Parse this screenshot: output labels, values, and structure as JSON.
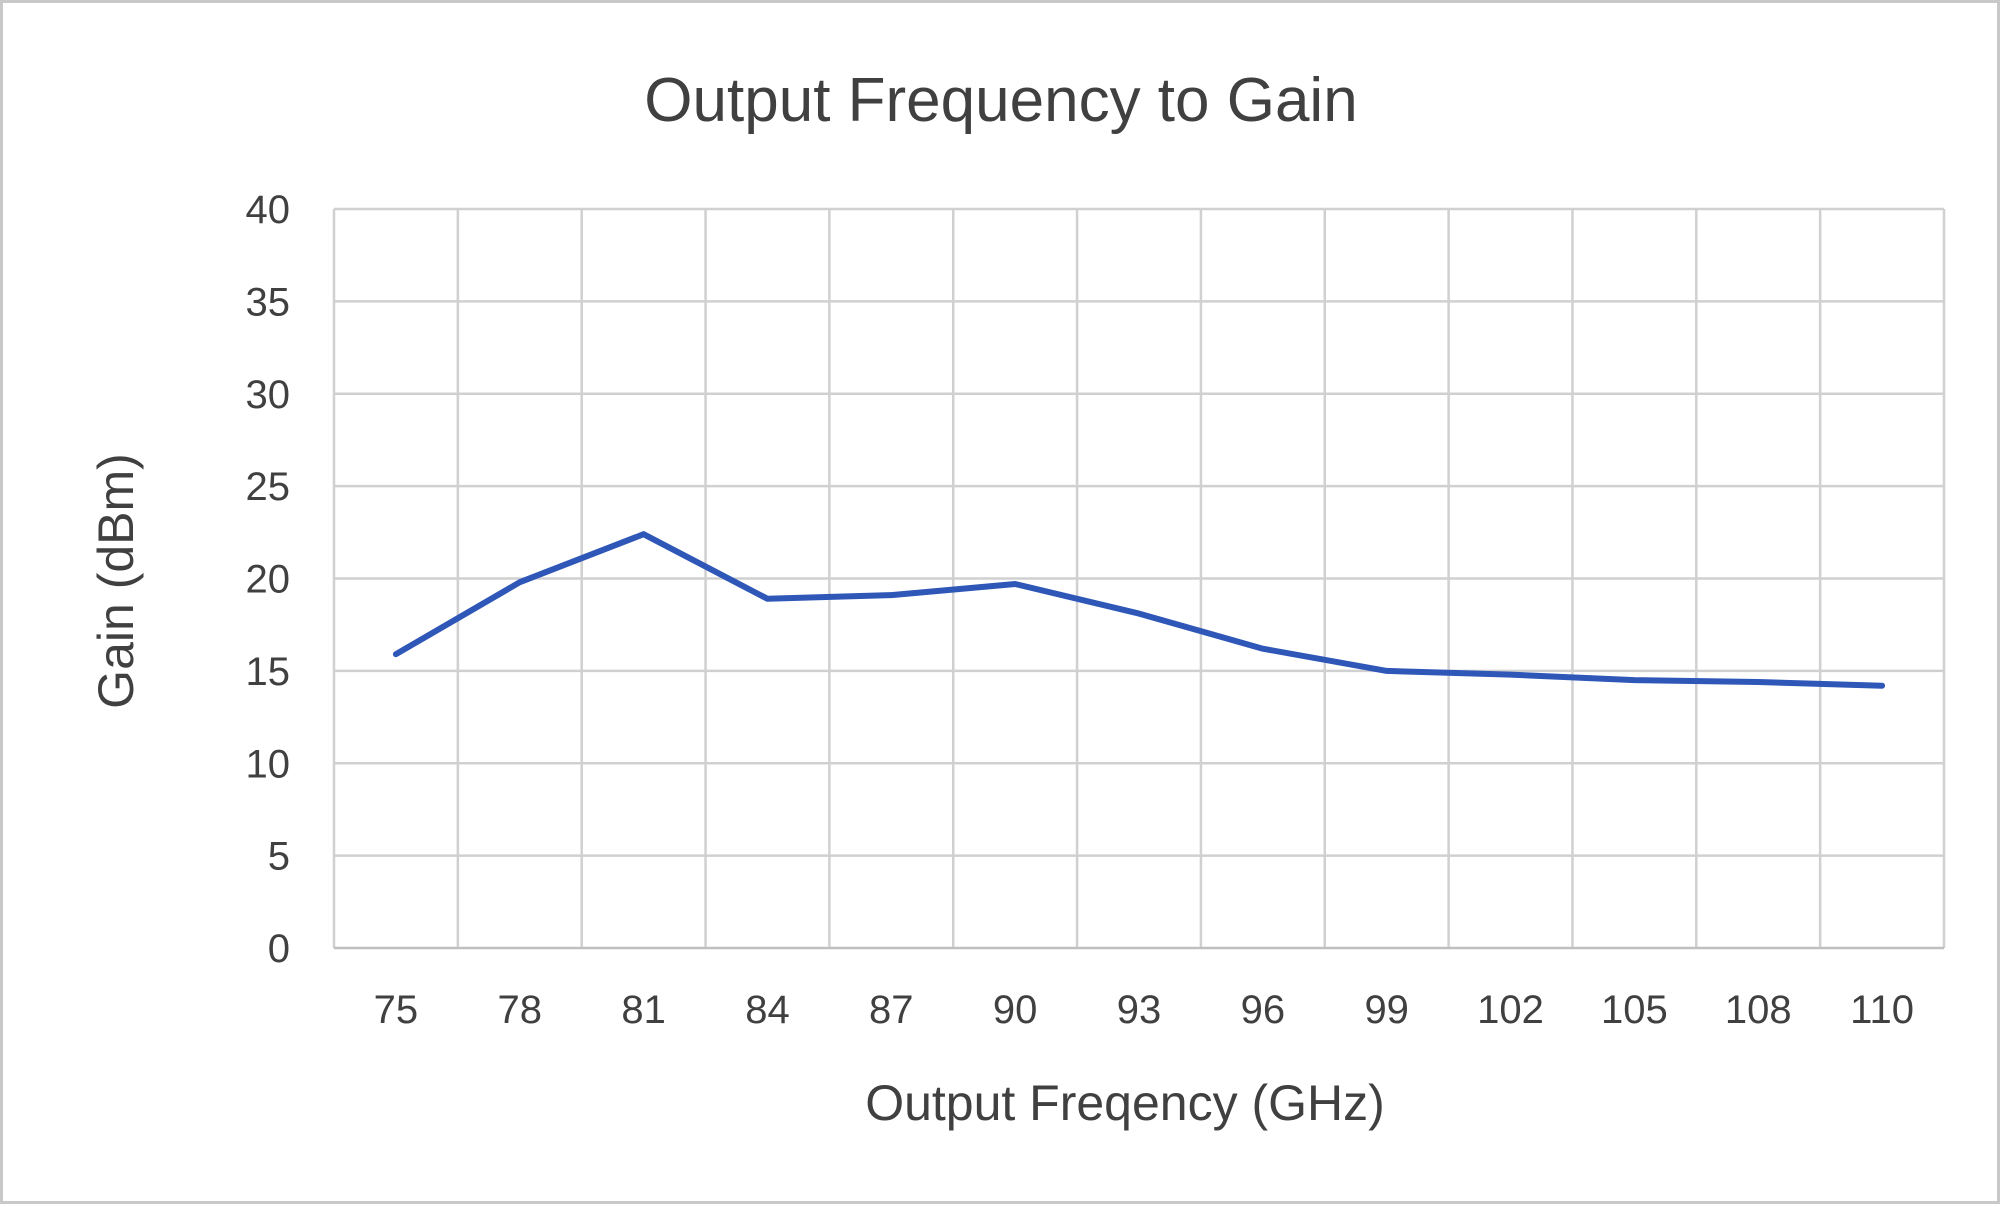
{
  "chart_data": {
    "type": "line",
    "title": "Output Frequency to Gain",
    "xlabel": "Output Freqency (GHz)",
    "ylabel": "Gain (dBm)",
    "categories": [
      "75",
      "78",
      "81",
      "84",
      "87",
      "90",
      "93",
      "96",
      "99",
      "102",
      "105",
      "108",
      "110"
    ],
    "series": [
      {
        "values": [
          15.9,
          19.8,
          22.4,
          18.9,
          19.1,
          19.7,
          18.1,
          16.2,
          15.0,
          14.8,
          14.5,
          14.4,
          14.2
        ],
        "color": "#2f57b8"
      }
    ],
    "ylim": [
      0,
      40
    ],
    "yticks": [
      "0",
      "5",
      "10",
      "15",
      "20",
      "25",
      "30",
      "35",
      "40"
    ],
    "grid": true,
    "legend": "none"
  }
}
